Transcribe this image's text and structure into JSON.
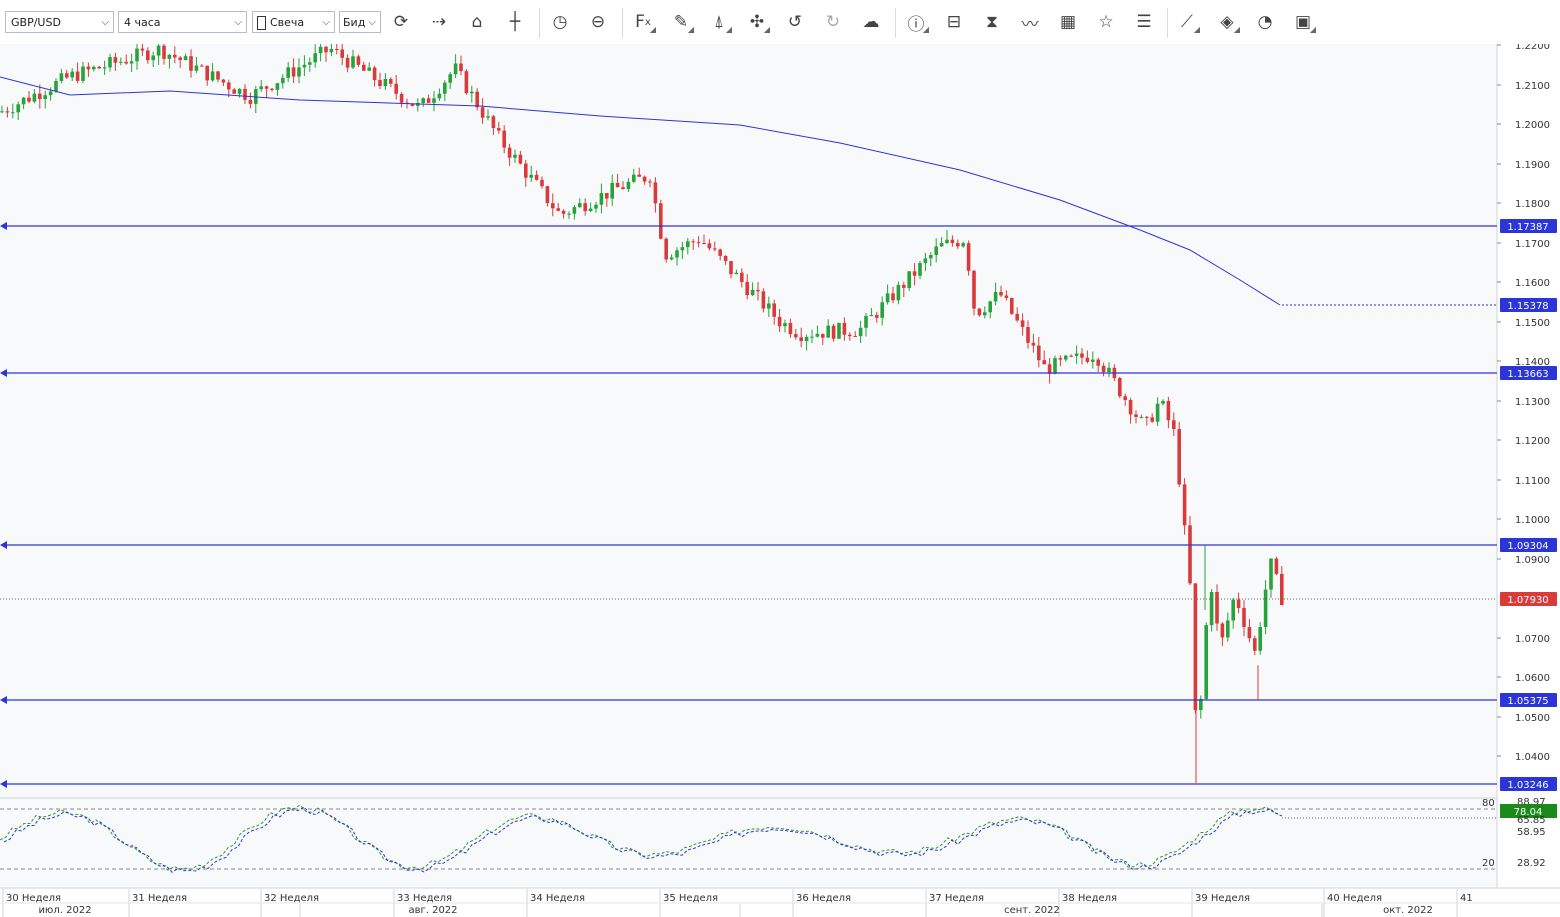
{
  "toolbar": {
    "symbol": "GBP/USD",
    "timeframe": "4 часа",
    "chart_type": "Свеча",
    "price_side": "Бид",
    "icons": [
      "refresh-icon",
      "shift-chart-icon",
      "lock-scale-icon",
      "crosshair-icon",
      "history-clock-icon",
      "zoom-reset-icon",
      "indicators-fx-icon",
      "draw-pencil-icon",
      "fibonacci-icon",
      "patterns-icon",
      "undo-icon",
      "redo-icon",
      "upload-icon",
      "info-icon",
      "compare-icon",
      "hourglass-icon",
      "line-wave-icon",
      "calendar-icon",
      "favorites-star-icon",
      "list-icon",
      "trend-lines-icon",
      "layers-icon",
      "template-icon",
      "save-icon"
    ]
  },
  "price_axis": {
    "ticks": [
      "1.2200",
      "1.2100",
      "1.2000",
      "1.1900",
      "1.1800",
      "1.1700",
      "1.1600",
      "1.1500",
      "1.1400",
      "1.1300",
      "1.1200",
      "1.1100",
      "1.1000",
      "1.0900",
      "1.0700",
      "1.0600",
      "1.0500",
      "1.0400"
    ],
    "badges": [
      {
        "label": "1.17387",
        "color": "#2b35d8"
      },
      {
        "label": "1.15378",
        "color": "#2b35d8"
      },
      {
        "label": "1.13663",
        "color": "#2b35d8"
      },
      {
        "label": "1.09304",
        "color": "#2b35d8"
      },
      {
        "label": "1.07930",
        "color": "#d93a3a"
      },
      {
        "label": "1.05375",
        "color": "#2b35d8"
      },
      {
        "label": "1.03246",
        "color": "#2b35d8"
      }
    ]
  },
  "oscillator": {
    "levels": [
      "80",
      "20"
    ],
    "values": [
      "88.97",
      "78.04",
      "65.85",
      "58.95",
      "28.92"
    ],
    "badge_color": "#1a8a1a"
  },
  "time_axis": {
    "weeks": [
      "30 Неделя",
      "31 Неделя",
      "32 Неделя",
      "33 Неделя",
      "34 Неделя",
      "35 Неделя",
      "36 Неделя",
      "37 Неделя",
      "38 Неделя",
      "39 Неделя",
      "40 Неделя",
      "41"
    ],
    "months": [
      "июл. 2022",
      "авг. 2022",
      "сент. 2022",
      "окт. 2022"
    ]
  },
  "colors": {
    "up": "#26a33a",
    "down": "#d93a3a",
    "ma": "#2b35d8",
    "hline": "#2b35d8"
  }
}
